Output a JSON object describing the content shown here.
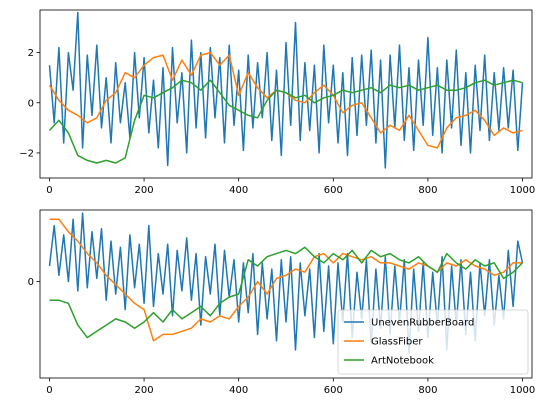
{
  "chart_data": [
    {
      "type": "line",
      "xlim": [
        -20,
        1020
      ],
      "ylim": [
        -3.0,
        3.7
      ],
      "x_ticks": [
        0,
        200,
        400,
        600,
        800,
        1000
      ],
      "y_ticks": [
        -2,
        0,
        2
      ],
      "grid": false,
      "legend": null,
      "series": [
        {
          "name": "UnevenRubberBoard",
          "color": "#1f77b4",
          "x": [
            0,
            10,
            20,
            30,
            40,
            50,
            60,
            70,
            80,
            90,
            100,
            110,
            120,
            130,
            140,
            150,
            160,
            170,
            180,
            190,
            200,
            210,
            220,
            230,
            240,
            250,
            260,
            270,
            280,
            290,
            300,
            310,
            320,
            330,
            340,
            350,
            360,
            370,
            380,
            390,
            400,
            410,
            420,
            430,
            440,
            450,
            460,
            470,
            480,
            490,
            500,
            510,
            520,
            530,
            540,
            550,
            560,
            570,
            580,
            590,
            600,
            610,
            620,
            630,
            640,
            650,
            660,
            670,
            680,
            690,
            700,
            710,
            720,
            730,
            740,
            750,
            760,
            770,
            780,
            790,
            800,
            810,
            820,
            830,
            840,
            850,
            860,
            870,
            880,
            890,
            900,
            910,
            920,
            930,
            940,
            950,
            960,
            970,
            980,
            990,
            1000
          ],
          "values": [
            1.5,
            -0.8,
            2.2,
            -1.6,
            2.0,
            0.5,
            3.6,
            -1.8,
            1.9,
            -0.5,
            2.3,
            -1.0,
            1.0,
            -1.6,
            1.6,
            -0.8,
            0.8,
            -1.4,
            2.0,
            -0.6,
            1.8,
            -1.2,
            0.9,
            -1.8,
            1.4,
            -2.5,
            2.2,
            -0.8,
            1.2,
            -2.0,
            2.5,
            -1.0,
            2.0,
            -1.4,
            2.2,
            -0.6,
            1.8,
            -1.6,
            2.3,
            -0.9,
            1.3,
            -1.9,
            1.9,
            -1.0,
            1.6,
            -0.6,
            2.0,
            -1.5,
            1.3,
            -2.1,
            2.4,
            -0.9,
            3.2,
            -1.5,
            1.6,
            -1.1,
            1.5,
            -2.0,
            2.3,
            -0.8,
            1.5,
            -1.6,
            1.2,
            -2.1,
            1.8,
            -1.3,
            1.9,
            -0.9,
            2.1,
            -1.6,
            1.7,
            -2.6,
            1.9,
            -1.0,
            2.3,
            -1.5,
            1.4,
            -1.9,
            1.7,
            -0.9,
            2.6,
            -1.3,
            1.4,
            -2.0,
            1.7,
            -1.0,
            2.1,
            -1.7,
            1.2,
            -2.0,
            1.5,
            -1.1,
            1.9,
            -1.5,
            1.2,
            -1.1,
            1.4,
            -1.0,
            1.3,
            -1.9,
            0.8
          ]
        },
        {
          "name": "GlassFiber",
          "color": "#ff7f0e",
          "x": [
            0,
            20,
            40,
            60,
            80,
            100,
            120,
            140,
            160,
            180,
            200,
            220,
            240,
            260,
            280,
            300,
            320,
            340,
            360,
            380,
            400,
            420,
            440,
            460,
            480,
            500,
            520,
            540,
            560,
            580,
            600,
            620,
            640,
            660,
            680,
            700,
            720,
            740,
            760,
            780,
            800,
            820,
            840,
            860,
            880,
            900,
            920,
            940,
            960,
            980,
            1000
          ],
          "values": [
            0.7,
            0.1,
            -0.3,
            -0.5,
            -0.8,
            -0.6,
            0.1,
            0.4,
            1.2,
            1.0,
            1.5,
            1.8,
            1.9,
            0.9,
            1.7,
            1.1,
            1.9,
            2.0,
            1.5,
            1.9,
            0.3,
            1.2,
            0.6,
            0.2,
            0.5,
            0.4,
            0.1,
            0.0,
            0.4,
            0.7,
            0.3,
            -0.4,
            -0.1,
            0.0,
            -0.6,
            -1.2,
            -0.9,
            -1.1,
            -0.5,
            -1.1,
            -1.7,
            -1.8,
            -1.0,
            -0.6,
            -0.5,
            -0.3,
            -0.7,
            -1.3,
            -1.0,
            -1.2,
            -1.1
          ]
        },
        {
          "name": "ArtNotebook",
          "color": "#2ca02c",
          "x": [
            0,
            20,
            40,
            60,
            80,
            100,
            120,
            140,
            160,
            180,
            200,
            220,
            240,
            260,
            280,
            300,
            320,
            340,
            360,
            380,
            400,
            420,
            440,
            460,
            480,
            500,
            520,
            540,
            560,
            580,
            600,
            620,
            640,
            660,
            680,
            700,
            720,
            740,
            760,
            780,
            800,
            820,
            840,
            860,
            880,
            900,
            920,
            940,
            960,
            980,
            1000
          ],
          "values": [
            -1.1,
            -0.7,
            -1.2,
            -2.1,
            -2.3,
            -2.4,
            -2.3,
            -2.4,
            -2.2,
            -0.7,
            0.3,
            0.2,
            0.4,
            0.6,
            0.9,
            0.8,
            0.5,
            0.9,
            0.4,
            -0.1,
            -0.3,
            -0.5,
            -0.6,
            0.1,
            0.5,
            0.4,
            0.2,
            0.3,
            0.0,
            0.2,
            0.3,
            0.5,
            0.4,
            0.5,
            0.6,
            0.4,
            0.7,
            0.6,
            0.7,
            0.5,
            0.6,
            0.7,
            0.5,
            0.5,
            0.6,
            0.8,
            0.9,
            0.7,
            0.8,
            0.9,
            0.8
          ]
        }
      ]
    },
    {
      "type": "line",
      "xlim": [
        -20,
        1020
      ],
      "ylim": [
        -3.1,
        2.3
      ],
      "x_ticks": [
        0,
        200,
        400,
        600,
        800,
        1000
      ],
      "y_ticks": [
        0
      ],
      "grid": false,
      "legend": "lower right",
      "legend_entries": [
        "UnevenRubberBoard",
        "GlassFiber",
        "ArtNotebook"
      ],
      "series": [
        {
          "name": "UnevenRubberBoard",
          "color": "#1f77b4",
          "x": [
            0,
            10,
            20,
            30,
            40,
            50,
            60,
            70,
            80,
            90,
            100,
            110,
            120,
            130,
            140,
            150,
            160,
            170,
            180,
            190,
            200,
            210,
            220,
            230,
            240,
            250,
            260,
            270,
            280,
            290,
            300,
            310,
            320,
            330,
            340,
            350,
            360,
            370,
            380,
            390,
            400,
            410,
            420,
            430,
            440,
            450,
            460,
            470,
            480,
            490,
            500,
            510,
            520,
            530,
            540,
            550,
            560,
            570,
            580,
            590,
            600,
            610,
            620,
            630,
            640,
            650,
            660,
            670,
            680,
            690,
            700,
            710,
            720,
            730,
            740,
            750,
            760,
            770,
            780,
            790,
            800,
            810,
            820,
            830,
            840,
            850,
            860,
            870,
            880,
            890,
            900,
            910,
            920,
            930,
            940,
            950,
            960,
            970,
            980,
            990,
            1000
          ],
          "values": [
            0.5,
            1.8,
            0.2,
            1.5,
            0.0,
            2.0,
            -0.3,
            2.2,
            -0.2,
            1.6,
            0.1,
            1.7,
            -0.6,
            1.3,
            -0.4,
            1.1,
            -0.9,
            1.5,
            -0.2,
            1.2,
            -0.7,
            1.8,
            -0.8,
            0.9,
            -0.4,
            1.2,
            -1.1,
            1.0,
            -0.3,
            1.4,
            -0.6,
            0.9,
            -1.4,
            0.8,
            -0.4,
            1.2,
            -1.1,
            1.0,
            -0.5,
            0.7,
            -1.3,
            0.6,
            -1.0,
            0.9,
            -1.7,
            0.6,
            -1.2,
            0.4,
            -1.9,
            0.7,
            -1.3,
            0.8,
            -2.2,
            0.6,
            -1.1,
            0.4,
            -1.8,
            0.9,
            -1.6,
            0.5,
            -2.0,
            0.6,
            -1.3,
            0.9,
            -1.8,
            0.3,
            -1.2,
            0.7,
            -2.0,
            0.4,
            -1.5,
            0.8,
            -1.7,
            0.5,
            -1.3,
            0.7,
            -2.3,
            0.4,
            -1.6,
            0.6,
            -1.8,
            0.3,
            -1.4,
            0.8,
            -2.2,
            0.5,
            -1.4,
            0.7,
            -1.7,
            0.3,
            -1.9,
            0.6,
            -1.1,
            0.7,
            -1.4,
            0.2,
            -1.2,
            1.0,
            -0.8,
            1.3,
            0.6
          ]
        },
        {
          "name": "GlassFiber",
          "color": "#ff7f0e",
          "x": [
            0,
            20,
            40,
            60,
            80,
            100,
            120,
            140,
            160,
            180,
            200,
            220,
            240,
            260,
            280,
            300,
            320,
            340,
            360,
            380,
            400,
            420,
            440,
            460,
            480,
            500,
            520,
            540,
            560,
            580,
            600,
            620,
            640,
            660,
            680,
            700,
            720,
            740,
            760,
            780,
            800,
            820,
            840,
            860,
            880,
            900,
            920,
            940,
            960,
            980,
            1000
          ],
          "values": [
            2.0,
            2.0,
            1.6,
            1.3,
            0.9,
            0.6,
            0.2,
            -0.1,
            -0.4,
            -0.7,
            -0.9,
            -1.9,
            -1.7,
            -1.7,
            -1.6,
            -1.5,
            -1.2,
            -1.3,
            -1.1,
            -1.2,
            -0.8,
            -0.5,
            0.0,
            -0.4,
            0.1,
            0.2,
            0.4,
            0.3,
            0.8,
            0.9,
            0.6,
            0.9,
            0.8,
            0.7,
            0.8,
            0.6,
            0.6,
            0.5,
            0.4,
            0.6,
            0.5,
            0.3,
            0.6,
            0.5,
            0.7,
            0.5,
            0.4,
            0.2,
            0.3,
            0.6,
            0.6
          ]
        },
        {
          "name": "ArtNotebook",
          "color": "#2ca02c",
          "x": [
            0,
            20,
            40,
            60,
            80,
            100,
            120,
            140,
            160,
            180,
            200,
            220,
            240,
            260,
            280,
            300,
            320,
            340,
            360,
            380,
            400,
            420,
            440,
            460,
            480,
            500,
            520,
            540,
            560,
            580,
            600,
            620,
            640,
            660,
            680,
            700,
            720,
            740,
            760,
            780,
            800,
            820,
            840,
            860,
            880,
            900,
            920,
            940,
            960,
            980,
            1000
          ],
          "values": [
            -0.6,
            -0.6,
            -0.7,
            -1.4,
            -1.8,
            -1.6,
            -1.4,
            -1.2,
            -1.3,
            -1.5,
            -1.3,
            -1.0,
            -1.3,
            -0.9,
            -1.2,
            -1.0,
            -0.8,
            -1.1,
            -0.7,
            -0.5,
            -0.4,
            0.7,
            0.5,
            0.8,
            0.9,
            1.0,
            0.9,
            1.1,
            0.8,
            0.6,
            0.9,
            0.7,
            1.0,
            0.6,
            1.0,
            0.8,
            0.9,
            0.7,
            0.6,
            0.8,
            0.5,
            0.3,
            0.9,
            0.6,
            0.4,
            0.7,
            0.5,
            0.6,
            0.1,
            0.3,
            0.6
          ]
        }
      ]
    }
  ]
}
